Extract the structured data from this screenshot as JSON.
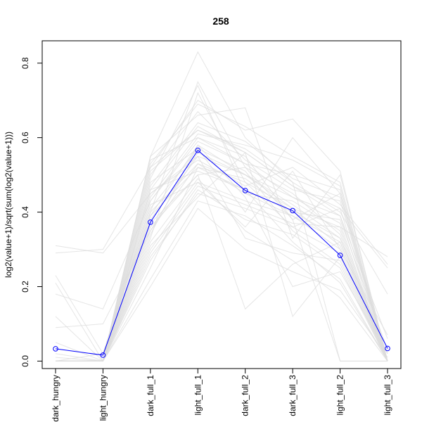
{
  "chart_data": {
    "type": "line",
    "title": "258",
    "xlabel": "",
    "ylabel": "log2(value+1)/sqrt(sum(log2(value+1)))",
    "categories": [
      "dark_hungry",
      "light_hungry",
      "dark_full_1",
      "light_full_1",
      "dark_full_2",
      "dark_full_3",
      "light_full_2",
      "light_full_3"
    ],
    "ylim": [
      -0.02,
      0.86
    ],
    "yticks": [
      0.0,
      0.2,
      0.4,
      0.6,
      0.8
    ],
    "ytick_labels": [
      "0.0",
      "0.2",
      "0.4",
      "0.6",
      "0.8"
    ],
    "grid": false,
    "series": [
      {
        "values": [
          0.033,
          0.016,
          0.373,
          0.566,
          0.458,
          0.404,
          0.284,
          0.034
        ],
        "color": "#0000ff",
        "markers": "open-circle"
      }
    ],
    "background_series": [
      [
        0.0,
        0.0,
        0.55,
        0.83,
        0.6,
        0.48,
        0.0,
        0.0
      ],
      [
        0.31,
        0.29,
        0.45,
        0.55,
        0.5,
        0.41,
        0.36,
        0.28
      ],
      [
        0.29,
        0.3,
        0.52,
        0.62,
        0.56,
        0.47,
        0.41,
        0.25
      ],
      [
        0.23,
        0.02,
        0.4,
        0.75,
        0.52,
        0.38,
        0.45,
        0.0
      ],
      [
        0.21,
        0.0,
        0.33,
        0.72,
        0.48,
        0.36,
        0.41,
        0.0
      ],
      [
        0.18,
        0.14,
        0.43,
        0.6,
        0.53,
        0.44,
        0.39,
        0.06
      ],
      [
        0.12,
        0.0,
        0.39,
        0.58,
        0.5,
        0.42,
        0.33,
        0.02
      ],
      [
        0.09,
        0.1,
        0.35,
        0.53,
        0.45,
        0.39,
        0.3,
        0.07
      ],
      [
        0.05,
        0.0,
        0.27,
        0.46,
        0.38,
        0.34,
        0.25,
        0.0
      ],
      [
        0.01,
        0.0,
        0.2,
        0.41,
        0.3,
        0.24,
        0.19,
        0.01
      ],
      [
        0.0,
        0.0,
        0.55,
        0.66,
        0.68,
        0.33,
        0.5,
        0.0
      ],
      [
        0.0,
        0.0,
        0.48,
        0.57,
        0.4,
        0.6,
        0.45,
        0.0
      ],
      [
        0.0,
        0.0,
        0.36,
        0.5,
        0.14,
        0.26,
        0.32,
        0.0
      ],
      [
        0.0,
        0.0,
        0.31,
        0.44,
        0.56,
        0.12,
        0.28,
        0.0
      ],
      [
        0.0,
        0.0,
        0.52,
        0.7,
        0.62,
        0.65,
        0.51,
        0.0
      ],
      [
        0.0,
        0.0,
        0.46,
        0.51,
        0.46,
        0.32,
        0.21,
        0.0
      ],
      [
        0.0,
        0.0,
        0.42,
        0.48,
        0.36,
        0.51,
        0.3,
        0.0
      ],
      [
        0.0,
        0.0,
        0.5,
        0.67,
        0.54,
        0.46,
        0.43,
        0.0
      ],
      [
        0.0,
        0.0,
        0.29,
        0.47,
        0.42,
        0.37,
        0.36,
        0.0
      ],
      [
        0.0,
        0.0,
        0.38,
        0.55,
        0.33,
        0.29,
        0.27,
        0.0
      ],
      [
        0.0,
        0.0,
        0.44,
        0.61,
        0.58,
        0.54,
        0.47,
        0.0
      ],
      [
        0.0,
        0.0,
        0.25,
        0.52,
        0.49,
        0.4,
        0.38,
        0.03
      ],
      [
        0.0,
        0.0,
        0.53,
        0.69,
        0.63,
        0.55,
        0.48,
        0.0
      ],
      [
        0.0,
        0.0,
        0.34,
        0.58,
        0.44,
        0.2,
        0.24,
        0.02
      ],
      [
        0.02,
        0.0,
        0.47,
        0.64,
        0.59,
        0.49,
        0.44,
        0.0
      ],
      [
        0.0,
        0.02,
        0.41,
        0.57,
        0.51,
        0.35,
        0.26,
        0.0
      ],
      [
        0.0,
        0.0,
        0.22,
        0.43,
        0.39,
        0.31,
        0.22,
        0.0
      ],
      [
        0.0,
        0.0,
        0.49,
        0.74,
        0.45,
        0.43,
        0.35,
        0.0
      ],
      [
        0.0,
        0.0,
        0.37,
        0.5,
        0.52,
        0.45,
        0.34,
        0.0
      ],
      [
        0.0,
        0.0,
        0.54,
        0.6,
        0.55,
        0.38,
        0.0,
        0.0
      ],
      [
        0.0,
        0.0,
        0.45,
        0.54,
        0.47,
        0.52,
        0.42,
        0.26
      ],
      [
        0.0,
        0.0,
        0.32,
        0.49,
        0.35,
        0.27,
        0.17,
        0.0
      ],
      [
        0.0,
        0.0,
        0.51,
        0.62,
        0.57,
        0.48,
        0.4,
        0.18
      ],
      [
        0.0,
        0.0,
        0.4,
        0.53,
        0.48,
        0.41,
        0.31,
        0.0
      ],
      [
        0.0,
        0.0,
        0.28,
        0.45,
        0.41,
        0.36,
        0.29,
        0.0
      ],
      [
        0.0,
        0.0,
        0.43,
        0.59,
        0.53,
        0.5,
        0.46,
        0.0
      ],
      [
        0.0,
        0.0,
        0.35,
        0.56,
        0.5,
        0.44,
        0.37,
        0.0
      ],
      [
        0.0,
        0.0,
        0.39,
        0.52,
        0.46,
        0.4,
        0.33,
        0.0
      ],
      [
        0.0,
        0.0,
        0.46,
        0.63,
        0.56,
        0.47,
        0.39,
        0.0
      ],
      [
        0.0,
        0.0,
        0.3,
        0.48,
        0.43,
        0.39,
        0.32,
        0.0
      ]
    ]
  }
}
